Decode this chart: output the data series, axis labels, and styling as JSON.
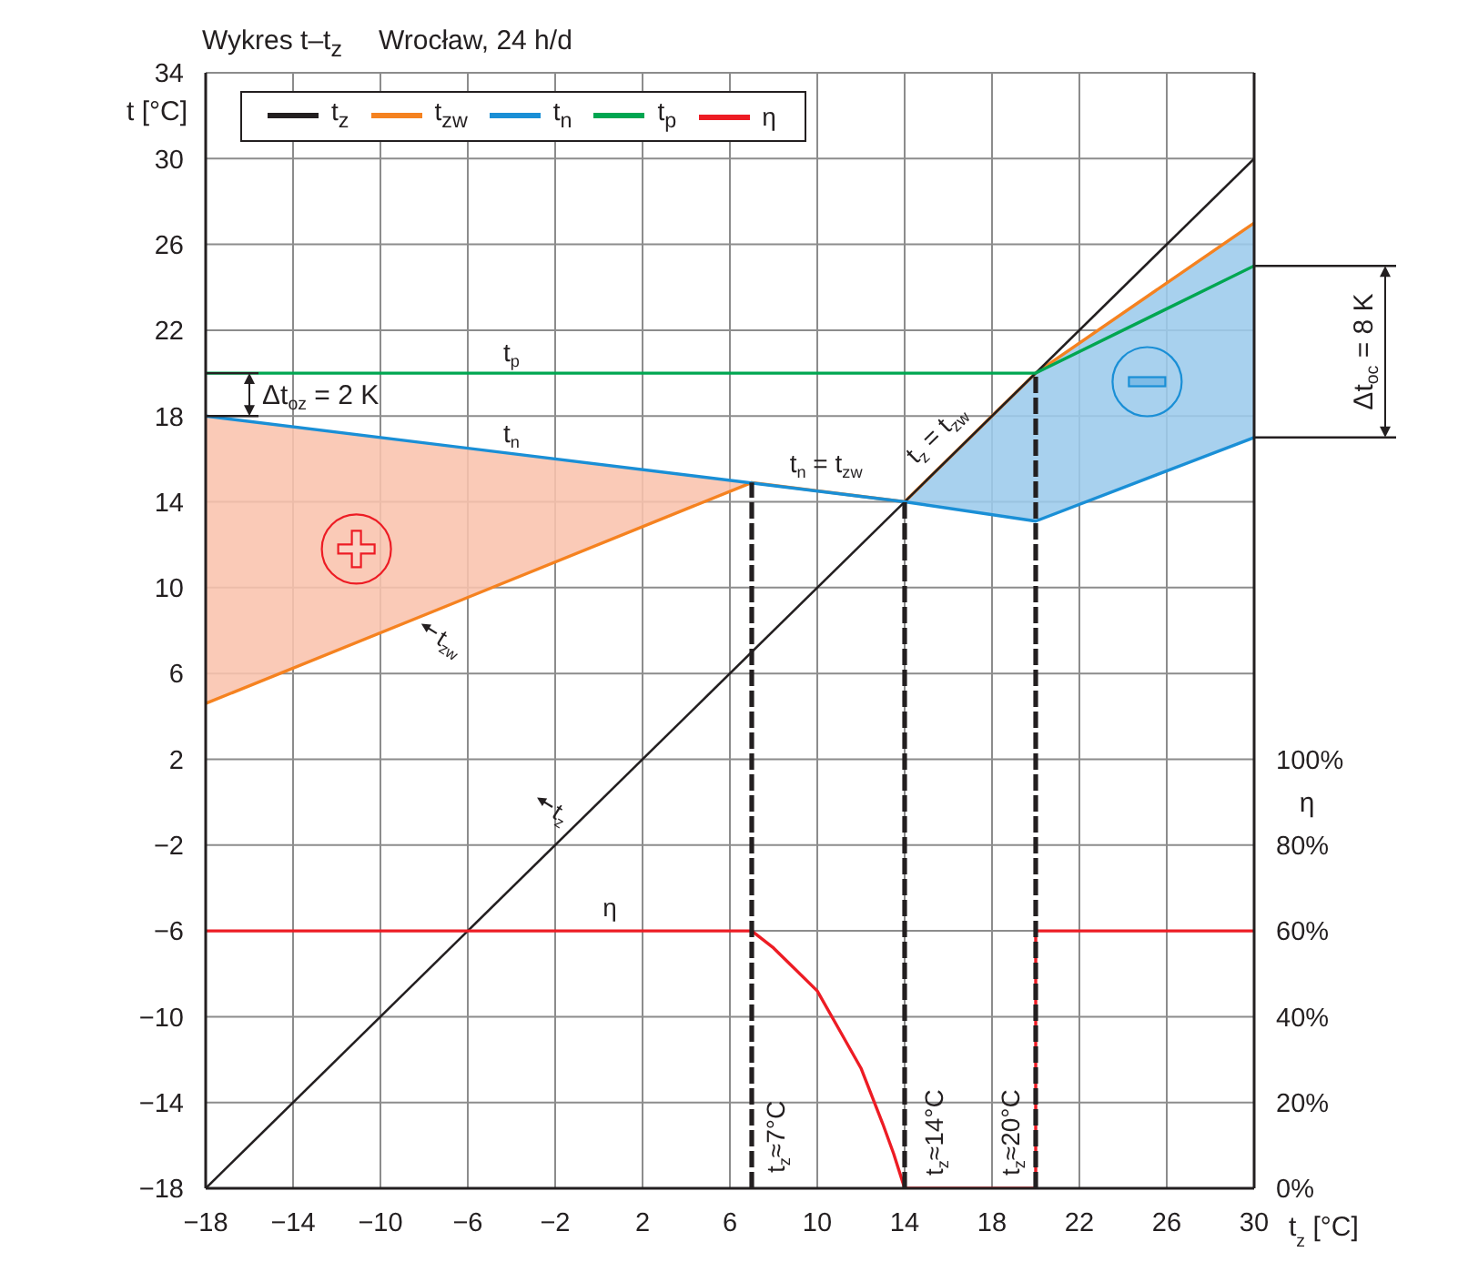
{
  "chart_data": {
    "type": "line",
    "title": "Wykres t–t$_{z}$",
    "subtitle": "Wrocław, 24 h/d",
    "xlabel": "t$_{z}$ [°C]",
    "ylabel": "t [°C]",
    "y2label": "η",
    "xlim": [
      -18,
      30
    ],
    "xticks": [
      -18,
      -14,
      -10,
      -6,
      -2,
      2,
      6,
      10,
      14,
      18,
      22,
      26,
      30
    ],
    "ylim": [
      -18,
      34
    ],
    "yticks": [
      -18,
      -14,
      -10,
      -6,
      -2,
      2,
      6,
      10,
      14,
      18,
      22,
      26,
      30,
      34
    ],
    "y2lim": [
      0,
      260
    ],
    "y2ticks": [
      {
        "value": 0,
        "label": "0%"
      },
      {
        "value": 20,
        "label": "20%"
      },
      {
        "value": 40,
        "label": "40%"
      },
      {
        "value": 60,
        "label": "60%"
      },
      {
        "value": 80,
        "label": "80%"
      },
      {
        "value": 100,
        "label": "100%"
      }
    ],
    "grid": true,
    "legend": "top left",
    "series": [
      {
        "name": "t$_{z}$",
        "color": "#231f20",
        "x": [
          -18,
          30
        ],
        "values": [
          -18,
          30
        ]
      },
      {
        "name": "t$_{zw}$",
        "color": "#f58220",
        "x": [
          -18,
          7,
          14,
          20,
          30
        ],
        "values": [
          4.6,
          14.9,
          14,
          20,
          27
        ]
      },
      {
        "name": "t$_{n}$",
        "color": "#1a8fd6",
        "x": [
          -18,
          14,
          20,
          30
        ],
        "values": [
          18,
          14,
          13.1,
          17
        ]
      },
      {
        "name": "t$_{p}$",
        "color": "#00a651",
        "x": [
          -18,
          20,
          30
        ],
        "values": [
          20,
          20,
          25
        ]
      },
      {
        "name": "η",
        "color": "#ed1c24",
        "axis": "y2",
        "x": [
          -18,
          7,
          8,
          9,
          10,
          11,
          12,
          13,
          13.5,
          14,
          20,
          20,
          30
        ],
        "values": [
          60,
          60,
          56,
          51,
          46,
          37,
          28,
          15,
          8,
          0,
          0,
          60,
          60
        ]
      },
      {
        "type": "area",
        "color": "#f9c3ad",
        "x": [
          -18,
          7
        ],
        "values": [
          null,
          null
        ],
        "lower": [
          4.6,
          14.9
        ],
        "upper": [
          18,
          14.9
        ]
      },
      {
        "type": "area",
        "color": "#9ccbec",
        "x": [
          14,
          20,
          30
        ],
        "values": [
          null,
          null,
          null
        ],
        "lower": [
          14,
          13.1,
          17
        ],
        "upper": [
          14,
          20,
          27
        ]
      },
      {
        "color": "#231f20",
        "line_style": "dashed",
        "x": [
          7,
          7
        ],
        "values": [
          -18,
          14.9
        ]
      },
      {
        "color": "#231f20",
        "line_style": "dashed",
        "x": [
          14,
          14
        ],
        "values": [
          -18,
          14
        ]
      },
      {
        "color": "#231f20",
        "line_style": "dashed",
        "x": [
          20,
          20
        ],
        "values": [
          -18,
          20
        ]
      }
    ],
    "annotations": [
      "t$_{p}$",
      "t$_{n}$",
      "t$_{n}$ = t$_{zw}$",
      "t$_{z}$ = t$_{zw}$",
      "t$_{zw}$",
      "t$_{z}$",
      "η",
      {
        "text": "t$_{z}$≈7°C",
        "x": 7,
        "y": -15.6
      },
      {
        "text": "t$_{z}$≈14°C",
        "x": 14,
        "y": -15.4
      },
      {
        "text": "t$_{z}$≈20°C",
        "x": 20,
        "y": -15.4
      },
      "Δt$_{oz}$ = 2 K",
      {
        "text": "Δt$_{oc}$ = 8 K",
        "x": 30,
        "y": 25
      }
    ]
  }
}
